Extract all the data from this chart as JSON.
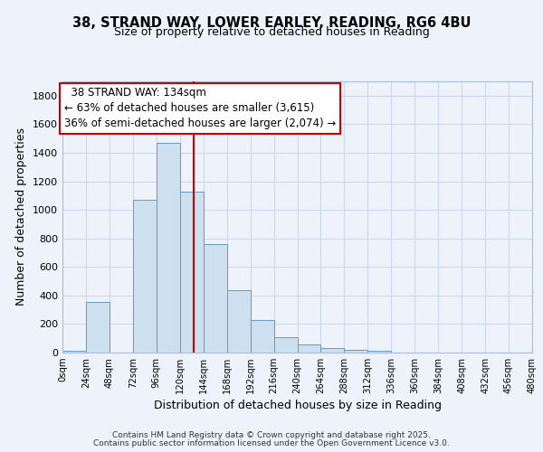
{
  "title_line1": "38, STRAND WAY, LOWER EARLEY, READING, RG6 4BU",
  "title_line2": "Size of property relative to detached houses in Reading",
  "xlabel": "Distribution of detached houses by size in Reading",
  "ylabel": "Number of detached properties",
  "bin_edges": [
    0,
    24,
    48,
    72,
    96,
    120,
    144,
    168,
    192,
    216,
    240,
    264,
    288,
    312,
    336,
    360,
    384,
    408,
    432,
    456,
    480
  ],
  "bar_heights": [
    15,
    355,
    0,
    1070,
    1470,
    1130,
    760,
    435,
    225,
    110,
    55,
    30,
    20,
    10,
    0,
    0,
    0,
    0,
    0,
    0
  ],
  "bar_color": "#cde0f0",
  "bar_edge_color": "#6699cc",
  "grid_color": "#c8d8f0",
  "vline_x": 134,
  "vline_color": "#cc0000",
  "annotation_title": "38 STRAND WAY: 134sqm",
  "annotation_line2": "← 63% of detached houses are smaller (3,615)",
  "annotation_line3": "36% of semi-detached houses are larger (2,074) →",
  "annotation_box_edge": "#cc0000",
  "ylim": [
    0,
    1900
  ],
  "yticks": [
    0,
    200,
    400,
    600,
    800,
    1000,
    1200,
    1400,
    1600,
    1800
  ],
  "xtick_labels": [
    "0sqm",
    "24sqm",
    "48sqm",
    "72sqm",
    "96sqm",
    "120sqm",
    "144sqm",
    "168sqm",
    "192sqm",
    "216sqm",
    "240sqm",
    "264sqm",
    "288sqm",
    "312sqm",
    "336sqm",
    "360sqm",
    "384sqm",
    "408sqm",
    "432sqm",
    "456sqm",
    "480sqm"
  ],
  "footer_line1": "Contains HM Land Registry data © Crown copyright and database right 2025.",
  "footer_line2": "Contains public sector information licensed under the Open Government Licence v3.0.",
  "bg_color": "#eef2fb"
}
